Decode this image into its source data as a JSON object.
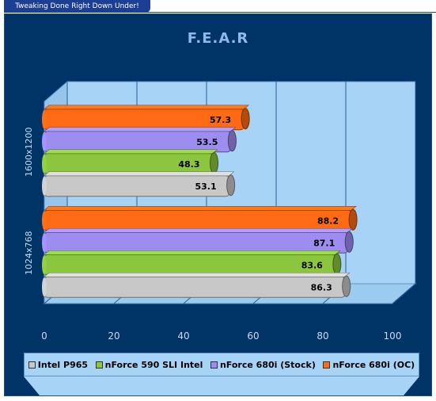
{
  "banner": "Tweaking Done Right Down Under!",
  "colors": {
    "panel": "#003366",
    "plot": "#a7d4f6",
    "title": "#8fb8f0"
  },
  "chart_data": {
    "type": "bar",
    "orientation": "horizontal",
    "title": "F.E.A.R",
    "categories": [
      "1600x1200",
      "1024x768"
    ],
    "series": [
      {
        "name": "Intel P965",
        "color": "#c8c8c8",
        "values": [
          53.1,
          86.3
        ]
      },
      {
        "name": "nForce 590 SLI Intel",
        "color": "#8cc63f",
        "values": [
          48.3,
          83.6
        ]
      },
      {
        "name": "nForce 680i (Stock)",
        "color": "#9d8df0",
        "values": [
          53.5,
          87.1
        ]
      },
      {
        "name": "nForce 680i (OC)",
        "color": "#ff6a14",
        "values": [
          57.3,
          88.2
        ]
      }
    ],
    "xlim": [
      0,
      100
    ],
    "xticks": [
      "0",
      "20",
      "40",
      "60",
      "80",
      "100"
    ],
    "value_labels": [
      [
        "53.1",
        "86.3"
      ],
      [
        "48.3",
        "83.6"
      ],
      [
        "53.5",
        "87.1"
      ],
      [
        "57.3",
        "88.2"
      ]
    ],
    "grid": true,
    "legend_position": "bottom"
  }
}
